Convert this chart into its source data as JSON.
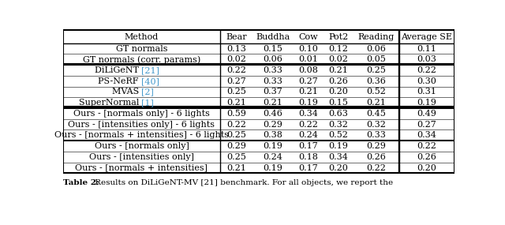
{
  "headers": [
    "Method",
    "Bear",
    "Buddha",
    "Cow",
    "Pot2",
    "Reading",
    "Average SE"
  ],
  "rows": [
    {
      "method": "GT normals",
      "cite": null,
      "cite_color": null,
      "values": [
        "0.13",
        "0.15",
        "0.10",
        "0.12",
        "0.06",
        "0.11"
      ],
      "group": 0
    },
    {
      "method": "GT normals (corr. params)",
      "cite": null,
      "cite_color": null,
      "values": [
        "0.02",
        "0.06",
        "0.01",
        "0.02",
        "0.05",
        "0.03"
      ],
      "group": 0
    },
    {
      "method": "DiLiGeNT",
      "cite": "[21]",
      "cite_color": "#4499cc",
      "values": [
        "0.22",
        "0.33",
        "0.08",
        "0.21",
        "0.25",
        "0.22"
      ],
      "group": 1
    },
    {
      "method": "PS-NeRF",
      "cite": "[40]",
      "cite_color": "#4499cc",
      "values": [
        "0.27",
        "0.33",
        "0.27",
        "0.26",
        "0.36",
        "0.30"
      ],
      "group": 1
    },
    {
      "method": "MVAS",
      "cite": "[2]",
      "cite_color": "#4499cc",
      "values": [
        "0.25",
        "0.37",
        "0.21",
        "0.20",
        "0.52",
        "0.31"
      ],
      "group": 1
    },
    {
      "method": "SuperNormal",
      "cite": "[1]",
      "cite_color": "#4499cc",
      "values": [
        "0.21",
        "0.21",
        "0.19",
        "0.15",
        "0.21",
        "0.19"
      ],
      "group": 1
    },
    {
      "method": "Ours - [normals only] - 6 lights",
      "cite": null,
      "cite_color": null,
      "values": [
        "0.59",
        "0.46",
        "0.34",
        "0.63",
        "0.45",
        "0.49"
      ],
      "group": 2
    },
    {
      "method": "Ours - [intensities only] - 6 lights",
      "cite": null,
      "cite_color": null,
      "values": [
        "0.22",
        "0.29",
        "0.22",
        "0.32",
        "0.32",
        "0.27"
      ],
      "group": 2
    },
    {
      "method": "Ours - [normals + intensities] - 6 lights",
      "cite": null,
      "cite_color": null,
      "values": [
        "0.25",
        "0.38",
        "0.24",
        "0.52",
        "0.33",
        "0.34"
      ],
      "group": 2
    },
    {
      "method": "Ours - [normals only]",
      "cite": null,
      "cite_color": null,
      "values": [
        "0.29",
        "0.19",
        "0.17",
        "0.19",
        "0.29",
        "0.22"
      ],
      "group": 3
    },
    {
      "method": "Ours - [intensities only]",
      "cite": null,
      "cite_color": null,
      "values": [
        "0.25",
        "0.24",
        "0.18",
        "0.34",
        "0.26",
        "0.26"
      ],
      "group": 3
    },
    {
      "method": "Ours - [normals + intensities]",
      "cite": null,
      "cite_color": null,
      "values": [
        "0.21",
        "0.19",
        "0.17",
        "0.20",
        "0.22",
        "0.20"
      ],
      "group": 3
    }
  ],
  "thick_sep_after_rows": [
    1,
    5,
    8
  ],
  "double_sep_after_rows": [
    1,
    5
  ],
  "caption_bold": "Table 2:",
  "caption_rest": " Results on DiLiGeNT-MV [21] benchmark. For all objects, we report the",
  "fontsize": 8.0,
  "header_fontsize": 8.0,
  "bg_color": "#ffffff"
}
